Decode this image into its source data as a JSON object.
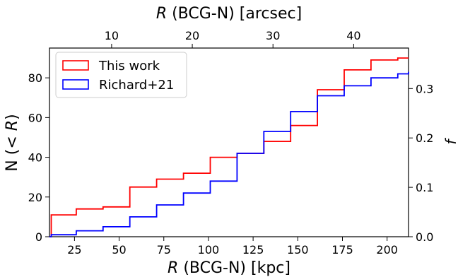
{
  "chart_data": {
    "type": "line",
    "drawstyle": "step",
    "xlabel": "R (BCG-N) [kpc]",
    "xlabel_italic": "R",
    "xlabel_rest": " (BCG-N) [kpc]",
    "top_xlabel": "R (BCG-N) [arcsec]",
    "top_xlabel_italic": "R",
    "top_xlabel_rest": " (BCG-N) [arcsec]",
    "ylabel": "N (< R)",
    "ylabel_prefix": "N (",
    "ylabel_lt": "<",
    "ylabel_italic": "R",
    "ylabel_suffix": ")",
    "right_ylabel": "f",
    "xlim": [
      11,
      212
    ],
    "ylim": [
      0,
      95
    ],
    "top_xlim": [
      2.3,
      46.8
    ],
    "right_ylim": [
      0,
      0.382
    ],
    "xticks": [
      25,
      50,
      75,
      100,
      125,
      150,
      175,
      200
    ],
    "yticks": [
      0,
      20,
      40,
      60,
      80
    ],
    "top_xticks": [
      10,
      20,
      30,
      40
    ],
    "right_yticks": [
      0.0,
      0.1,
      0.2,
      0.3
    ],
    "right_ytick_labels": [
      "0.0",
      "0.1",
      "0.2",
      "0.3"
    ],
    "legend_position": "top-left",
    "grid": false,
    "series": [
      {
        "name": "This work",
        "color": "#ff0000",
        "axis": "left",
        "x": [
          11,
          12,
          26,
          41,
          56,
          71,
          86,
          101,
          116,
          131,
          146,
          161,
          176,
          191,
          206,
          212
        ],
        "y": [
          0,
          11,
          14,
          15,
          25,
          29,
          32,
          40,
          42,
          48,
          56,
          74,
          84,
          89,
          90,
          90
        ]
      },
      {
        "name": "Richard+21",
        "color": "#0000ff",
        "axis": "left",
        "x": [
          11,
          12,
          26,
          41,
          56,
          71,
          86,
          101,
          116,
          131,
          146,
          161,
          176,
          191,
          206,
          212
        ],
        "y": [
          0,
          1,
          3,
          5,
          10,
          16,
          22,
          28,
          42,
          53,
          63,
          71,
          76,
          80,
          82,
          83
        ]
      }
    ]
  }
}
